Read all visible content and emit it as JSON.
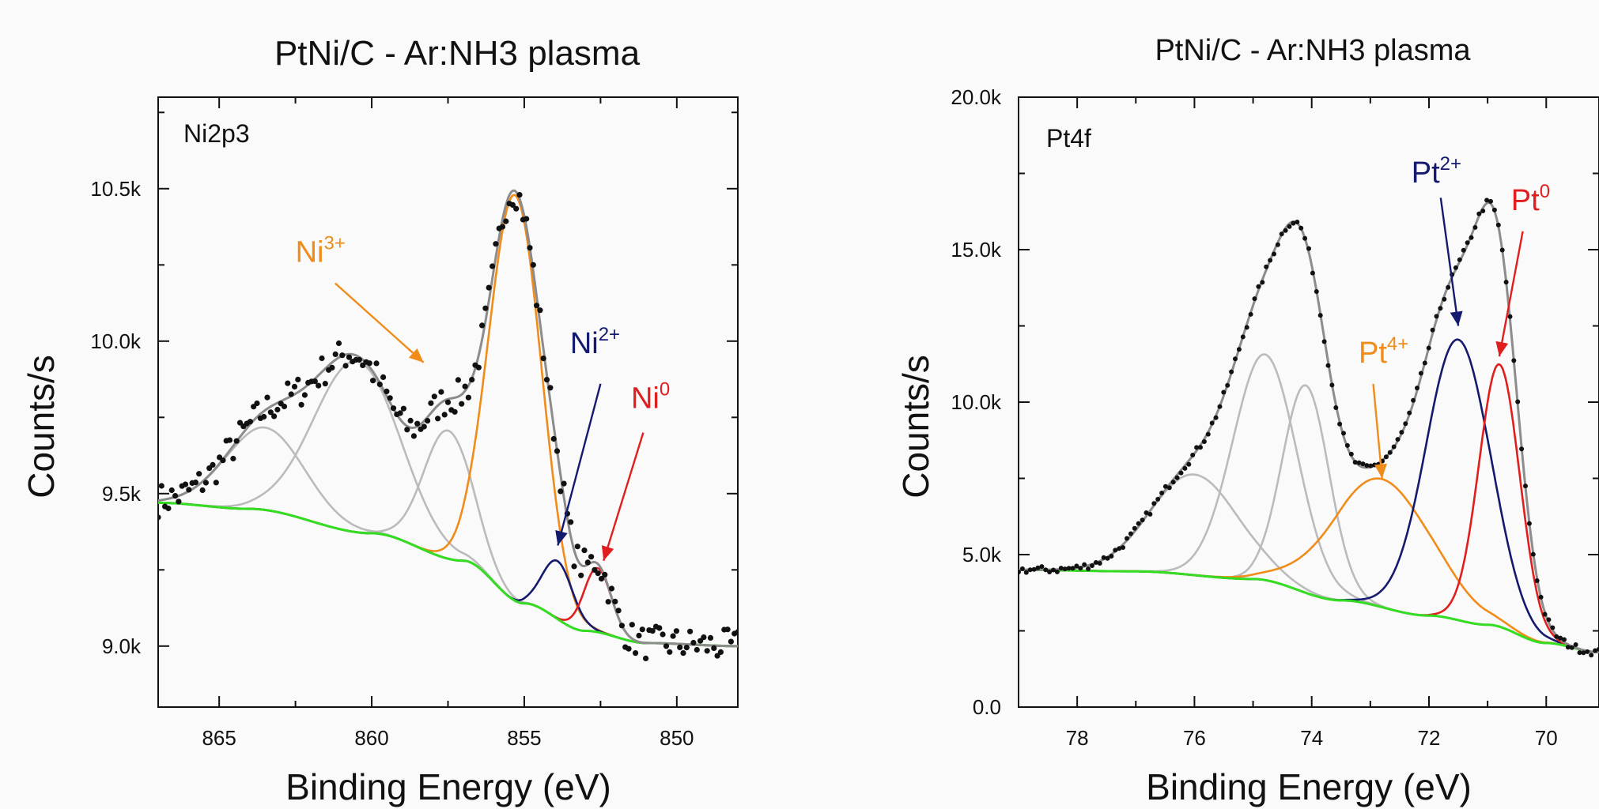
{
  "colors": {
    "data_points": "#111111",
    "envelope": "#8c8c8c",
    "background_line": "#33dd22",
    "component_gray": "#bbbbbb",
    "orange": "#f08c1a",
    "navy": "#141a6e",
    "red": "#e01e1e"
  },
  "chart_data": [
    {
      "type": "line",
      "title": "PtNi/C - Ar:NH3 plasma",
      "xlabel": "Binding Energy (eV)",
      "ylabel": "Counts/s",
      "region_label": "Ni2p3",
      "x_reversed": true,
      "xlim": [
        867,
        848
      ],
      "ylim": [
        8800,
        10800
      ],
      "xticks": [
        865,
        860,
        855,
        850
      ],
      "xtick_labels": [
        "865",
        "860",
        "855",
        "850"
      ],
      "yticks": [
        9000,
        9500,
        10000,
        10500
      ],
      "ytick_labels": [
        "9.0k",
        "9.5k",
        "10.0k",
        "10.5k"
      ],
      "background": {
        "name": "background",
        "x": [
          867,
          864,
          860,
          857,
          855,
          853,
          851,
          848
        ],
        "y": [
          9470,
          9450,
          9370,
          9280,
          9140,
          9050,
          9010,
          9000
        ]
      },
      "components": [
        {
          "name": "Ni3+ satellite a",
          "color_key": "component_gray",
          "center": 863.5,
          "amplitude": 270,
          "sigma": 1.3
        },
        {
          "name": "Ni3+ satellite b",
          "color_key": "component_gray",
          "center": 860.5,
          "amplitude": 560,
          "sigma": 1.4
        },
        {
          "name": "Ni3+ satellite c",
          "color_key": "component_gray",
          "center": 857.5,
          "amplitude": 420,
          "sigma": 0.8
        },
        {
          "name": "Ni3+",
          "color_key": "orange",
          "center": 855.3,
          "amplitude": 1330,
          "sigma": 0.85
        },
        {
          "name": "Ni2+",
          "color_key": "navy",
          "center": 853.9,
          "amplitude": 190,
          "sigma": 0.5
        },
        {
          "name": "Ni0",
          "color_key": "red",
          "center": 852.6,
          "amplitude": 210,
          "sigma": 0.45
        }
      ],
      "annotations": [
        {
          "base": "Ni",
          "sup": "3+",
          "color_key": "orange",
          "label_x": 862.5,
          "label_y": 10260,
          "arrow_from": [
            861.2,
            10190
          ],
          "arrow_to": [
            858.3,
            9930
          ]
        },
        {
          "base": "Ni",
          "sup": "2+",
          "color_key": "navy",
          "label_x": 853.5,
          "label_y": 9960,
          "arrow_from": [
            852.5,
            9860
          ],
          "arrow_to": [
            853.9,
            9330
          ]
        },
        {
          "base": "Ni",
          "sup": "0",
          "color_key": "red",
          "label_x": 851.5,
          "label_y": 9780,
          "arrow_from": [
            851.1,
            9700
          ],
          "arrow_to": [
            852.4,
            9280
          ]
        }
      ]
    },
    {
      "type": "line",
      "title": "PtNi/C - Ar:NH3 plasma",
      "xlabel": "Binding Energy (eV)",
      "ylabel": "Counts/s",
      "region_label": "Pt4f",
      "x_reversed": true,
      "xlim": [
        79,
        69.1
      ],
      "ylim": [
        0,
        20000
      ],
      "xticks": [
        78,
        76,
        74,
        72,
        70
      ],
      "xtick_labels": [
        "78",
        "76",
        "74",
        "72",
        "70"
      ],
      "yticks": [
        0,
        5000,
        10000,
        15000,
        20000
      ],
      "ytick_labels": [
        "0.0",
        "5.0k",
        "10.0k",
        "15.0k",
        "20.0k"
      ],
      "background": {
        "name": "background",
        "x": [
          79,
          77,
          75,
          73.5,
          72,
          71,
          70,
          69.1
        ],
        "y": [
          4500,
          4450,
          4200,
          3500,
          3000,
          2700,
          2100,
          1800
        ]
      },
      "components": [
        {
          "name": "Pt satellite a",
          "color_key": "component_gray",
          "center": 76.0,
          "amplitude": 3300,
          "sigma": 0.75
        },
        {
          "name": "Pt satellite b",
          "color_key": "component_gray",
          "center": 74.8,
          "amplitude": 7400,
          "sigma": 0.55
        },
        {
          "name": "Pt satellite c",
          "color_key": "component_gray",
          "center": 74.1,
          "amplitude": 6800,
          "sigma": 0.4
        },
        {
          "name": "Pt4+",
          "color_key": "orange",
          "center": 72.8,
          "amplitude": 4200,
          "sigma": 0.85
        },
        {
          "name": "Pt2+",
          "color_key": "navy",
          "center": 71.5,
          "amplitude": 9200,
          "sigma": 0.55
        },
        {
          "name": "Pt0",
          "color_key": "red",
          "center": 70.8,
          "amplitude": 8600,
          "sigma": 0.35
        }
      ],
      "annotations": [
        {
          "base": "Pt",
          "sup": "4+",
          "color_key": "orange",
          "label_x": 73.2,
          "label_y": 11300,
          "arrow_from": [
            72.95,
            10600
          ],
          "arrow_to": [
            72.8,
            7500
          ]
        },
        {
          "base": "Pt",
          "sup": "2+",
          "color_key": "navy",
          "label_x": 72.3,
          "label_y": 17200,
          "arrow_from": [
            71.8,
            16700
          ],
          "arrow_to": [
            71.5,
            12500
          ]
        },
        {
          "base": "Pt",
          "sup": "0",
          "color_key": "red",
          "label_x": 70.6,
          "label_y": 16300,
          "arrow_from": [
            70.4,
            15600
          ],
          "arrow_to": [
            70.8,
            11500
          ]
        }
      ]
    }
  ]
}
